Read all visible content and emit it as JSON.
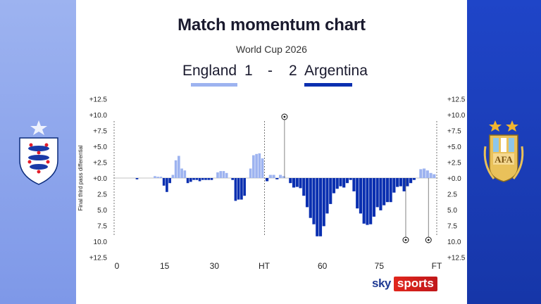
{
  "title": "Match momentum chart",
  "subtitle": "World Cup 2026",
  "score": {
    "home_team": "England",
    "home_goals": "1",
    "separator": "-",
    "away_goals": "2",
    "away_team": "Argentina"
  },
  "brand": {
    "sky": "sky",
    "sports": "sports"
  },
  "icons": {
    "home_crest": "england-crest-icon",
    "away_crest": "afa-crest-icon",
    "goal": "football-icon"
  },
  "crest_text": {
    "afa": "AFA"
  },
  "colors": {
    "home": "#9db3f0",
    "away": "#0a2fb0",
    "left_panel": "#8aa4ec",
    "right_panel": "#1b3ebd"
  },
  "chart_data": {
    "type": "bar",
    "ylabel": "Final third pass differential",
    "ylim": [
      -12.5,
      12.5
    ],
    "y_ticks": [
      "+12.5",
      "+10.0",
      "+7.5",
      "+5.0",
      "+2.5",
      "+0.0",
      "2.5",
      "5.0",
      "7.5",
      "10.0",
      "+12.5"
    ],
    "y_tick_values": [
      12.5,
      10,
      7.5,
      5,
      2.5,
      0,
      -2.5,
      -5,
      -7.5,
      -10,
      -12.5
    ],
    "x_tick_labels": [
      "0",
      "15",
      "30",
      "HT",
      "60",
      "75",
      "FT"
    ],
    "x_tick_minutes": [
      0,
      15,
      30,
      45,
      60,
      75,
      90
    ],
    "series": [
      {
        "first_half": [
          0,
          0,
          0,
          0,
          0,
          0,
          0,
          -0.2,
          0,
          0,
          0,
          0,
          0,
          0.3,
          0.2,
          0.2,
          -1.2,
          -2.2,
          -0.8,
          0.5,
          2.8,
          3.5,
          1.5,
          1.2,
          -0.8,
          -0.6,
          -0.3,
          -0.3,
          -0.5,
          -0.3,
          -0.3,
          -0.3,
          -0.3,
          0,
          0.9,
          1.1,
          1.1,
          0.8,
          0,
          -0.3,
          -3.6,
          -3.4,
          -3.4,
          -2.8,
          0,
          1.5,
          3.6,
          3.8,
          3.9,
          3.1
        ],
        "second_half": [
          -0.5,
          0.5,
          0.5,
          -0.2,
          0.5,
          0.3,
          0,
          -0.8,
          -1.5,
          -1.4,
          -1.6,
          -2.8,
          -4.6,
          -6.3,
          -7.3,
          -9.2,
          -9.2,
          -7.6,
          -5.6,
          -4.1,
          -2.4,
          -1.7,
          -1.3,
          -1.5,
          -0.8,
          -0.3,
          -2.1,
          -4.8,
          -5.6,
          -7.2,
          -7.4,
          -7.3,
          -6.1,
          -4.6,
          -5.1,
          -4.3,
          -3.8,
          -3.8,
          -2.3,
          -1.4,
          -1.3,
          -2.1,
          -1.3,
          -0.8,
          -0.3,
          0,
          1.4,
          1.5,
          1.2,
          0.8,
          0.6
        ]
      }
    ],
    "goals": [
      {
        "team": "England",
        "minute": 50,
        "label": "goal"
      },
      {
        "team": "Argentina",
        "minute": 82,
        "label": "goal"
      },
      {
        "team": "Argentina",
        "minute": 88,
        "label": "goal"
      }
    ],
    "grid": false,
    "legend": "top-center"
  }
}
